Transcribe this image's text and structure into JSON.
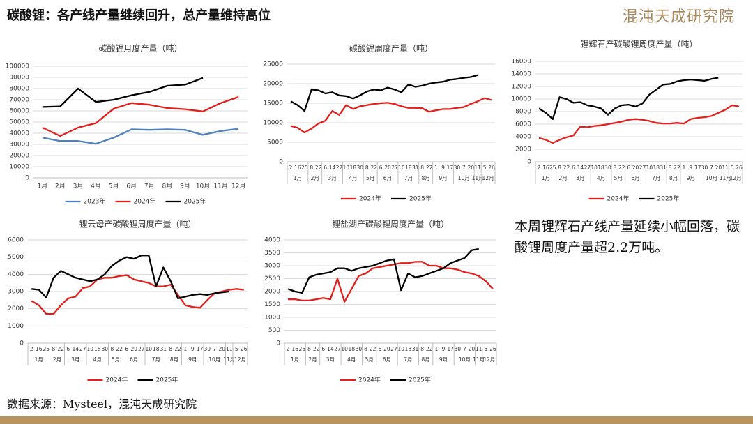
{
  "header": {
    "title": "碳酸锂：各产线产量继续回升，总产量维持高位",
    "logo": "混沌天成研究院"
  },
  "note": "本周锂辉石产线产量延续小幅回落，碳酸锂周度产量超2.2万吨。",
  "source": "数据来源：Mysteel，混沌天成研究院",
  "chart_data": [
    {
      "type": "line",
      "title": "碳酸锂月度产量（吨）",
      "grid": true,
      "categories": [
        "1月",
        "2月",
        "3月",
        "4月",
        "5月",
        "6月",
        "7月",
        "8月",
        "9月",
        "10月",
        "11月",
        "12月"
      ],
      "ylim": [
        0,
        100000
      ],
      "yticks": [
        0,
        10000,
        20000,
        30000,
        40000,
        50000,
        60000,
        70000,
        80000,
        90000,
        100000
      ],
      "series": [
        {
          "name": "2023年",
          "color": "#4f81bd",
          "values": [
            36000,
            33000,
            33000,
            30500,
            36000,
            43500,
            43000,
            43500,
            43000,
            38500,
            42000,
            44000
          ]
        },
        {
          "name": "2024年",
          "color": "#e3201c",
          "values": [
            45000,
            37500,
            45000,
            49000,
            62000,
            67000,
            65500,
            62500,
            61500,
            59500,
            67000,
            72500
          ]
        },
        {
          "name": "2025年",
          "color": "#000000",
          "values": [
            63500,
            64000,
            80000,
            68000,
            70000,
            74000,
            77000,
            82500,
            83500,
            89500,
            null,
            null
          ]
        }
      ]
    },
    {
      "type": "line",
      "title": "碳酸锂周度产量（吨）",
      "grid": true,
      "categories": [
        "2",
        "16",
        "25",
        "8",
        "22",
        "6",
        "14",
        "27",
        "10",
        "18",
        "30",
        "8",
        "22",
        "6",
        "20",
        "27",
        "10",
        "18",
        "31",
        "8",
        "22",
        "1",
        "9",
        "17",
        "30",
        "7",
        "20",
        "11",
        "5",
        "26"
      ],
      "month_groups": [
        {
          "label": "1月",
          "span": 3
        },
        {
          "label": "2月",
          "span": 2
        },
        {
          "label": "3月",
          "span": 3
        },
        {
          "label": "4月",
          "span": 3
        },
        {
          "label": "5月",
          "span": 2
        },
        {
          "label": "6月",
          "span": 3
        },
        {
          "label": "7月",
          "span": 3
        },
        {
          "label": "8月",
          "span": 2
        },
        {
          "label": "9月",
          "span": 3
        },
        {
          "label": "10月",
          "span": 3
        },
        {
          "label": "11月",
          "span": 1
        },
        {
          "label": "12月",
          "span": 2
        }
      ],
      "ylim": [
        0,
        25000
      ],
      "yticks": [
        0,
        5000,
        10000,
        15000,
        20000,
        25000
      ],
      "series": [
        {
          "name": "2024年",
          "color": "#e3201c",
          "values": [
            9200,
            8700,
            7500,
            8500,
            9800,
            10500,
            13000,
            12000,
            14500,
            13500,
            14200,
            14500,
            14800,
            15000,
            15100,
            14800,
            14200,
            13800,
            13800,
            13700,
            12800,
            13200,
            13500,
            13500,
            13800,
            14000,
            14800,
            15500,
            16300,
            15800
          ]
        },
        {
          "name": "2025年",
          "color": "#000000",
          "values": [
            15500,
            14500,
            13000,
            18500,
            18300,
            17500,
            17800,
            17000,
            16800,
            16200,
            17000,
            18000,
            18500,
            18300,
            19000,
            18500,
            17800,
            19800,
            19200,
            19500,
            20000,
            20300,
            20500,
            21000,
            21200,
            21500,
            21700,
            22200,
            null,
            null
          ]
        }
      ]
    },
    {
      "type": "line",
      "title": "锂辉石产碳酸锂周度产量（吨）",
      "grid": true,
      "categories": [
        "2",
        "16",
        "25",
        "8",
        "22",
        "6",
        "14",
        "27",
        "10",
        "18",
        "30",
        "8",
        "22",
        "6",
        "20",
        "27",
        "10",
        "18",
        "31",
        "8",
        "22",
        "1",
        "9",
        "17",
        "30",
        "7",
        "20",
        "11",
        "5",
        "26"
      ],
      "month_groups": [
        {
          "label": "1月",
          "span": 3
        },
        {
          "label": "2月",
          "span": 2
        },
        {
          "label": "3月",
          "span": 3
        },
        {
          "label": "4月",
          "span": 3
        },
        {
          "label": "5月",
          "span": 2
        },
        {
          "label": "6月",
          "span": 3
        },
        {
          "label": "7月",
          "span": 3
        },
        {
          "label": "8月",
          "span": 2
        },
        {
          "label": "9月",
          "span": 3
        },
        {
          "label": "10月",
          "span": 3
        },
        {
          "label": "11月",
          "span": 1
        },
        {
          "label": "12月",
          "span": 2
        }
      ],
      "ylim": [
        0,
        16000
      ],
      "yticks": [
        0,
        2000,
        4000,
        6000,
        8000,
        10000,
        12000,
        14000,
        16000
      ],
      "series": [
        {
          "name": "2024年",
          "color": "#e3201c",
          "values": [
            3800,
            3500,
            3000,
            3500,
            3900,
            4200,
            5600,
            5500,
            5700,
            5800,
            6000,
            6200,
            6400,
            6700,
            6800,
            6700,
            6500,
            6200,
            6100,
            6100,
            6200,
            6100,
            6800,
            7000,
            7100,
            7300,
            7800,
            8300,
            9000,
            8800
          ]
        },
        {
          "name": "2025年",
          "color": "#000000",
          "values": [
            8500,
            7800,
            6800,
            10300,
            10000,
            9400,
            9500,
            9000,
            8800,
            8500,
            7500,
            8500,
            9000,
            9100,
            8800,
            9300,
            10700,
            11500,
            12300,
            12400,
            12800,
            13000,
            13100,
            13000,
            12900,
            13200,
            13400,
            null,
            null,
            null
          ]
        }
      ]
    },
    {
      "type": "line",
      "title": "锂云母产碳酸锂周度产量（吨）",
      "grid": true,
      "categories": [
        "2",
        "16",
        "25",
        "8",
        "22",
        "6",
        "14",
        "27",
        "10",
        "18",
        "30",
        "8",
        "22",
        "6",
        "20",
        "27",
        "10",
        "18",
        "31",
        "8",
        "22",
        "1",
        "9",
        "17",
        "30",
        "7",
        "20",
        "11",
        "5",
        "26"
      ],
      "month_groups": [
        {
          "label": "1月",
          "span": 3
        },
        {
          "label": "2月",
          "span": 2
        },
        {
          "label": "3月",
          "span": 3
        },
        {
          "label": "4月",
          "span": 3
        },
        {
          "label": "5月",
          "span": 2
        },
        {
          "label": "6月",
          "span": 3
        },
        {
          "label": "7月",
          "span": 3
        },
        {
          "label": "8月",
          "span": 2
        },
        {
          "label": "9月",
          "span": 3
        },
        {
          "label": "10月",
          "span": 3
        },
        {
          "label": "11月",
          "span": 1
        },
        {
          "label": "12月",
          "span": 2
        }
      ],
      "ylim": [
        0,
        6000
      ],
      "yticks": [
        0,
        1000,
        2000,
        3000,
        4000,
        5000,
        6000
      ],
      "series": [
        {
          "name": "2024年",
          "color": "#e3201c",
          "values": [
            2450,
            2200,
            1700,
            1700,
            2200,
            2600,
            2700,
            3200,
            3300,
            3700,
            3800,
            3800,
            3900,
            3950,
            3700,
            3600,
            3500,
            3300,
            3300,
            3400,
            2800,
            2200,
            2100,
            2050,
            2500,
            2900,
            3000,
            3100,
            3150,
            3100
          ]
        },
        {
          "name": "2025年",
          "color": "#000000",
          "values": [
            3150,
            3100,
            2650,
            3800,
            4200,
            4000,
            3800,
            3700,
            3600,
            3700,
            4000,
            4500,
            4800,
            5000,
            4900,
            5100,
            5100,
            3300,
            4400,
            3600,
            2600,
            2700,
            2800,
            2850,
            2800,
            2900,
            2950,
            3000,
            null,
            null
          ]
        }
      ]
    },
    {
      "type": "line",
      "title": "锂盐湖产碳酸锂周度产量（吨）",
      "grid": true,
      "categories": [
        "2",
        "16",
        "25",
        "8",
        "22",
        "6",
        "14",
        "27",
        "10",
        "18",
        "30",
        "8",
        "22",
        "6",
        "20",
        "27",
        "10",
        "18",
        "31",
        "8",
        "22",
        "1",
        "9",
        "17",
        "30",
        "7",
        "20",
        "11",
        "5",
        "26"
      ],
      "month_groups": [
        {
          "label": "1月",
          "span": 3
        },
        {
          "label": "2月",
          "span": 2
        },
        {
          "label": "3月",
          "span": 3
        },
        {
          "label": "4月",
          "span": 3
        },
        {
          "label": "5月",
          "span": 2
        },
        {
          "label": "6月",
          "span": 3
        },
        {
          "label": "7月",
          "span": 3
        },
        {
          "label": "8月",
          "span": 2
        },
        {
          "label": "9月",
          "span": 3
        },
        {
          "label": "10月",
          "span": 3
        },
        {
          "label": "11月",
          "span": 1
        },
        {
          "label": "12月",
          "span": 2
        }
      ],
      "ylim": [
        0,
        4000
      ],
      "yticks": [
        0,
        500,
        1000,
        1500,
        2000,
        2500,
        3000,
        3500,
        4000
      ],
      "series": [
        {
          "name": "2024年",
          "color": "#e3201c",
          "values": [
            1700,
            1700,
            1650,
            1650,
            1700,
            1750,
            1700,
            2500,
            1600,
            2100,
            2600,
            2700,
            2900,
            2950,
            3000,
            3050,
            3100,
            3100,
            3150,
            3150,
            3000,
            3000,
            2900,
            2900,
            2850,
            2750,
            2700,
            2600,
            2400,
            2100
          ]
        },
        {
          "name": "2025年",
          "color": "#000000",
          "values": [
            2100,
            2000,
            1950,
            2550,
            2650,
            2700,
            2750,
            2900,
            2900,
            2800,
            2900,
            2950,
            3000,
            3100,
            3200,
            3250,
            2050,
            2700,
            2550,
            2600,
            2700,
            2800,
            2900,
            3100,
            3200,
            3300,
            3600,
            3650,
            null,
            null
          ]
        }
      ]
    }
  ]
}
